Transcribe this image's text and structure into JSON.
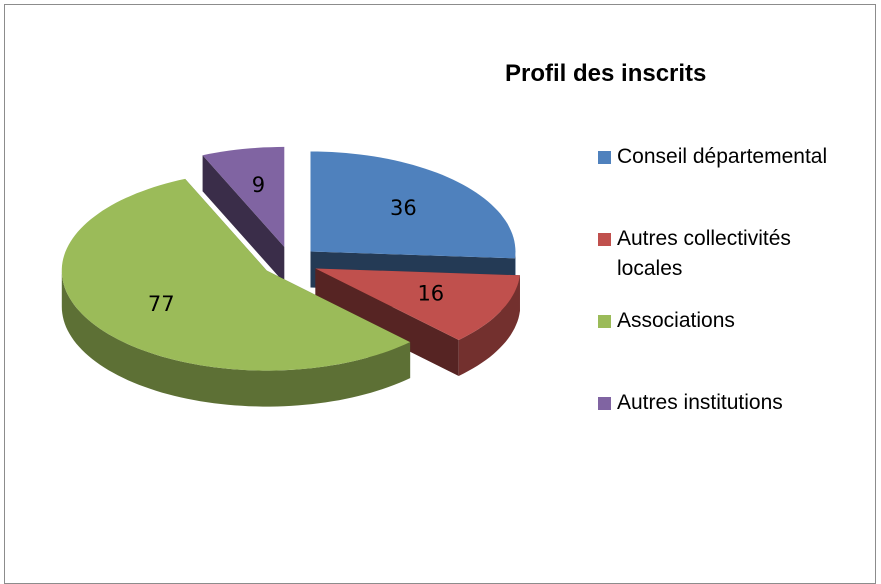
{
  "chart_data": {
    "type": "pie",
    "title": "Profil des inscrits",
    "categories": [
      "Conseil départemental",
      "Autres collectivités locales",
      "Associations",
      "Autres institutions"
    ],
    "values": [
      36,
      16,
      77,
      9
    ],
    "colors": [
      "#4f81bd",
      "#c0504d",
      "#9bbb59",
      "#8064a2"
    ],
    "legend": "right"
  }
}
